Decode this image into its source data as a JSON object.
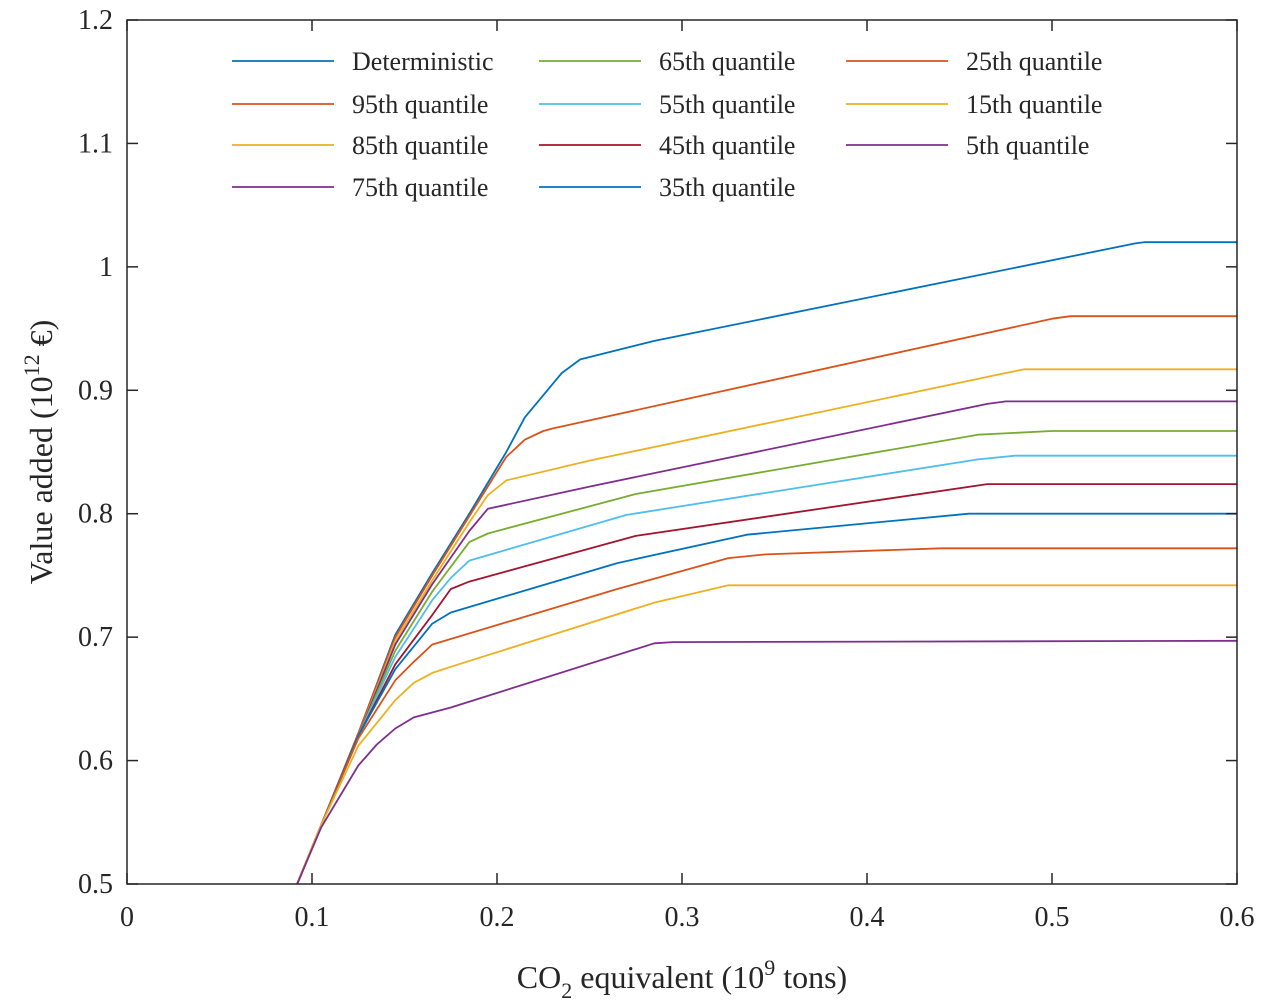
{
  "chart_data": {
    "type": "line",
    "xlabel": {
      "prefix": "CO",
      "sub": "2",
      "middle": " equivalent (10",
      "sup": "9",
      "suffix": " tons)"
    },
    "ylabel": {
      "prefix": "Value added (10",
      "sup": "12",
      "suffix": " €)"
    },
    "xlim": [
      0,
      0.6
    ],
    "ylim": [
      0.5,
      1.2
    ],
    "xticks": [
      0,
      0.1,
      0.2,
      0.3,
      0.4,
      0.5,
      0.6
    ],
    "xtick_labels": [
      "0",
      "0.1",
      "0.2",
      "0.3",
      "0.4",
      "0.5",
      "0.6"
    ],
    "yticks": [
      0.5,
      0.6,
      0.7,
      0.8,
      0.9,
      1.0,
      1.1,
      1.2
    ],
    "ytick_labels": [
      "0.5",
      "0.6",
      "0.7",
      "0.8",
      "0.9",
      "1",
      "1.1",
      "1.2"
    ],
    "grid": false,
    "legend_position": "top",
    "series": [
      {
        "name": "Deterministic",
        "color": "#0072BD",
        "x": [
          0.092,
          0.105,
          0.125,
          0.145,
          0.165,
          0.185,
          0.205,
          0.215,
          0.235,
          0.245,
          0.285,
          0.545,
          0.55,
          0.6
        ],
        "y": [
          0.5,
          0.548,
          0.622,
          0.702,
          0.752,
          0.8,
          0.85,
          0.878,
          0.914,
          0.925,
          0.94,
          1.019,
          1.02,
          1.02
        ]
      },
      {
        "name": "95th quantile",
        "color": "#D95319",
        "x": [
          0.092,
          0.105,
          0.125,
          0.145,
          0.165,
          0.185,
          0.205,
          0.215,
          0.225,
          0.23,
          0.5,
          0.51,
          0.6
        ],
        "y": [
          0.5,
          0.548,
          0.622,
          0.7,
          0.75,
          0.798,
          0.846,
          0.86,
          0.867,
          0.869,
          0.958,
          0.96,
          0.96
        ]
      },
      {
        "name": "85th quantile",
        "color": "#EDB120",
        "x": [
          0.092,
          0.105,
          0.125,
          0.145,
          0.165,
          0.185,
          0.195,
          0.205,
          0.25,
          0.475,
          0.485,
          0.6
        ],
        "y": [
          0.5,
          0.548,
          0.62,
          0.697,
          0.746,
          0.793,
          0.815,
          0.827,
          0.843,
          0.914,
          0.917,
          0.917
        ]
      },
      {
        "name": "75th quantile",
        "color": "#7E2F8E",
        "x": [
          0.092,
          0.105,
          0.125,
          0.145,
          0.165,
          0.185,
          0.195,
          0.25,
          0.465,
          0.475,
          0.6
        ],
        "y": [
          0.5,
          0.548,
          0.62,
          0.694,
          0.743,
          0.786,
          0.804,
          0.822,
          0.889,
          0.891,
          0.891
        ]
      },
      {
        "name": "65th quantile",
        "color": "#77AC30",
        "x": [
          0.092,
          0.105,
          0.125,
          0.145,
          0.165,
          0.185,
          0.195,
          0.275,
          0.46,
          0.5,
          0.6
        ],
        "y": [
          0.5,
          0.548,
          0.62,
          0.689,
          0.737,
          0.777,
          0.784,
          0.816,
          0.864,
          0.867,
          0.867
        ]
      },
      {
        "name": "55th quantile",
        "color": "#4DBEEE",
        "x": [
          0.092,
          0.105,
          0.125,
          0.145,
          0.165,
          0.175,
          0.185,
          0.27,
          0.46,
          0.48,
          0.6
        ],
        "y": [
          0.5,
          0.548,
          0.62,
          0.684,
          0.73,
          0.748,
          0.762,
          0.799,
          0.844,
          0.847,
          0.847
        ]
      },
      {
        "name": "45th quantile",
        "color": "#A2142F",
        "x": [
          0.092,
          0.105,
          0.125,
          0.145,
          0.165,
          0.175,
          0.185,
          0.275,
          0.465,
          0.6
        ],
        "y": [
          0.5,
          0.548,
          0.62,
          0.678,
          0.718,
          0.739,
          0.745,
          0.782,
          0.824,
          0.824
        ]
      },
      {
        "name": "35th quantile",
        "color": "#0072BD",
        "x": [
          0.092,
          0.105,
          0.125,
          0.145,
          0.165,
          0.175,
          0.265,
          0.335,
          0.455,
          0.6
        ],
        "y": [
          0.5,
          0.548,
          0.62,
          0.674,
          0.711,
          0.72,
          0.76,
          0.783,
          0.8,
          0.8
        ]
      },
      {
        "name": "25th quantile",
        "color": "#D95319",
        "x": [
          0.092,
          0.105,
          0.125,
          0.145,
          0.155,
          0.165,
          0.265,
          0.325,
          0.345,
          0.44,
          0.6
        ],
        "y": [
          0.5,
          0.548,
          0.618,
          0.665,
          0.68,
          0.694,
          0.739,
          0.764,
          0.767,
          0.772,
          0.772
        ]
      },
      {
        "name": "15th quantile",
        "color": "#EDB120",
        "x": [
          0.092,
          0.105,
          0.125,
          0.145,
          0.155,
          0.165,
          0.175,
          0.285,
          0.325,
          0.6
        ],
        "y": [
          0.5,
          0.548,
          0.612,
          0.649,
          0.663,
          0.671,
          0.676,
          0.728,
          0.742,
          0.742
        ]
      },
      {
        "name": "5th quantile",
        "color": "#7E2F8E",
        "x": [
          0.092,
          0.105,
          0.125,
          0.135,
          0.145,
          0.155,
          0.175,
          0.285,
          0.295,
          0.6
        ],
        "y": [
          0.5,
          0.546,
          0.596,
          0.613,
          0.626,
          0.635,
          0.643,
          0.695,
          0.696,
          0.697
        ]
      }
    ],
    "legend_layout": [
      [
        "Deterministic",
        "95th quantile",
        "85th quantile",
        "75th quantile"
      ],
      [
        "65th quantile",
        "55th quantile",
        "45th quantile",
        "35th quantile"
      ],
      [
        "25th quantile",
        "15th quantile",
        "5th quantile"
      ]
    ]
  }
}
